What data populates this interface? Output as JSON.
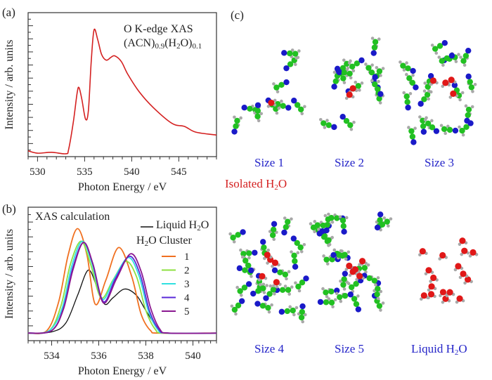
{
  "panels": {
    "a": {
      "label": "(a)"
    },
    "b": {
      "label": "(b)"
    },
    "c": {
      "label": "(c)"
    }
  },
  "chart_data": [
    {
      "panel": "(a)",
      "type": "line",
      "xlabel": "Photon Energy / eV",
      "ylabel": "Intensity / arb. units",
      "xlim": [
        529,
        549
      ],
      "ylim": [
        0,
        1
      ],
      "xticks": [
        530,
        535,
        540,
        545
      ],
      "yticks_labeled": false,
      "annotation": {
        "line1": "O K-edge XAS",
        "line2_parts": [
          "(ACN)",
          "0.9",
          "(H",
          "2",
          "O)",
          "0.1"
        ]
      },
      "color": "#d42020",
      "series": [
        {
          "x": [
            529.0,
            530,
            531.5,
            533,
            533.3,
            533.8,
            534.2,
            534.4,
            534.7,
            535.1,
            535.4,
            535.7,
            536.0,
            536.4,
            536.8,
            537.3,
            537.8,
            538.2,
            538.9,
            539.6,
            540.8,
            542.3,
            544.3,
            545.6,
            546.8,
            549
          ],
          "y": [
            0.04,
            0.024,
            0.03,
            0.02,
            0.05,
            0.24,
            0.44,
            0.48,
            0.4,
            0.26,
            0.32,
            0.66,
            0.88,
            0.81,
            0.71,
            0.67,
            0.69,
            0.7,
            0.66,
            0.57,
            0.45,
            0.34,
            0.23,
            0.21,
            0.17,
            0.15
          ]
        }
      ]
    },
    {
      "panel": "(b)",
      "type": "line",
      "title": "XAS calculation",
      "xlabel": "Photon Energy / eV",
      "ylabel": "Intensity / arb. units",
      "xlim": [
        533,
        541
      ],
      "ylim": [
        -0.06,
        1.0
      ],
      "xticks": [
        534,
        536,
        538,
        540
      ],
      "yticks_labeled": false,
      "legend": {
        "liquid_label_parts": [
          "Liquid H",
          "2",
          "O"
        ],
        "cluster_title_parts": [
          "H",
          "2",
          "O Cluster"
        ],
        "placement": "top-right"
      },
      "series": [
        {
          "name": "Liquid H2O",
          "legend_key": "liquid",
          "color": "#111111",
          "x": [
            533,
            534.0,
            534.6,
            535.1,
            535.55,
            535.9,
            536.25,
            536.6,
            537.1,
            537.6,
            538.0,
            538.5,
            538.9,
            541
          ],
          "y": [
            0,
            0.01,
            0.08,
            0.3,
            0.5,
            0.38,
            0.23,
            0.28,
            0.35,
            0.3,
            0.18,
            0.04,
            0,
            0
          ]
        },
        {
          "name": "1",
          "color": "#f07020",
          "x": [
            533,
            533.8,
            534.3,
            534.7,
            535.1,
            535.5,
            535.85,
            536.3,
            536.85,
            537.4,
            537.8,
            538.2,
            538.6,
            541
          ],
          "y": [
            0,
            0.02,
            0.25,
            0.62,
            0.83,
            0.62,
            0.23,
            0.42,
            0.68,
            0.45,
            0.15,
            0.02,
            0,
            0
          ]
        },
        {
          "name": "2",
          "color": "#8ee040",
          "x": [
            533,
            533.9,
            534.4,
            534.8,
            535.25,
            535.65,
            536.1,
            536.6,
            537.15,
            537.6,
            538.0,
            538.4,
            538.8,
            541
          ],
          "y": [
            0,
            0.02,
            0.22,
            0.55,
            0.73,
            0.55,
            0.28,
            0.42,
            0.57,
            0.45,
            0.18,
            0.03,
            0,
            0
          ]
        },
        {
          "name": "3",
          "color": "#30e0e0",
          "x": [
            533,
            533.9,
            534.45,
            534.85,
            535.3,
            535.7,
            536.15,
            536.65,
            537.25,
            537.7,
            538.1,
            538.5,
            538.9,
            541
          ],
          "y": [
            0,
            0.02,
            0.2,
            0.53,
            0.73,
            0.56,
            0.27,
            0.43,
            0.6,
            0.46,
            0.18,
            0.03,
            0,
            0
          ]
        },
        {
          "name": "4",
          "color": "#5a28d8",
          "x": [
            533,
            534.0,
            534.5,
            534.9,
            535.35,
            535.75,
            536.2,
            536.7,
            537.3,
            537.75,
            538.15,
            538.55,
            538.95,
            541
          ],
          "y": [
            0,
            0.02,
            0.2,
            0.52,
            0.72,
            0.55,
            0.25,
            0.43,
            0.61,
            0.47,
            0.18,
            0.03,
            0,
            0
          ]
        },
        {
          "name": "5",
          "color": "#8a1890",
          "x": [
            533,
            534.0,
            534.5,
            534.9,
            535.35,
            535.75,
            536.2,
            536.75,
            537.35,
            537.8,
            538.2,
            538.6,
            539.0,
            541
          ],
          "y": [
            0,
            0.02,
            0.19,
            0.5,
            0.72,
            0.55,
            0.24,
            0.43,
            0.63,
            0.49,
            0.2,
            0.03,
            0,
            0
          ]
        }
      ]
    }
  ],
  "structures": {
    "atom_colors": {
      "carbon": "#22c022",
      "nitrogen": "#1a1ac8",
      "hydrogen": "#a8a8a8",
      "oxygen": "#e01818"
    },
    "items": [
      {
        "label": "Size 1",
        "kind": "cluster",
        "acn": 9,
        "water": 1
      },
      {
        "label": "Size 2",
        "kind": "cluster",
        "acn": 13,
        "water": 2
      },
      {
        "label": "Size 3",
        "kind": "cluster",
        "acn": 17,
        "water": 4
      },
      {
        "label": "Size 4",
        "kind": "cluster",
        "acn": 20,
        "water": 5
      },
      {
        "label": "Size 5",
        "kind": "cluster",
        "acn": 22,
        "water": 5
      },
      {
        "label_parts": [
          "Liquid H",
          "2",
          "O"
        ],
        "kind": "liquid",
        "acn": 0,
        "water": 17
      }
    ],
    "isolated_label_parts": [
      "Isolated H",
      "2",
      "O"
    ]
  }
}
